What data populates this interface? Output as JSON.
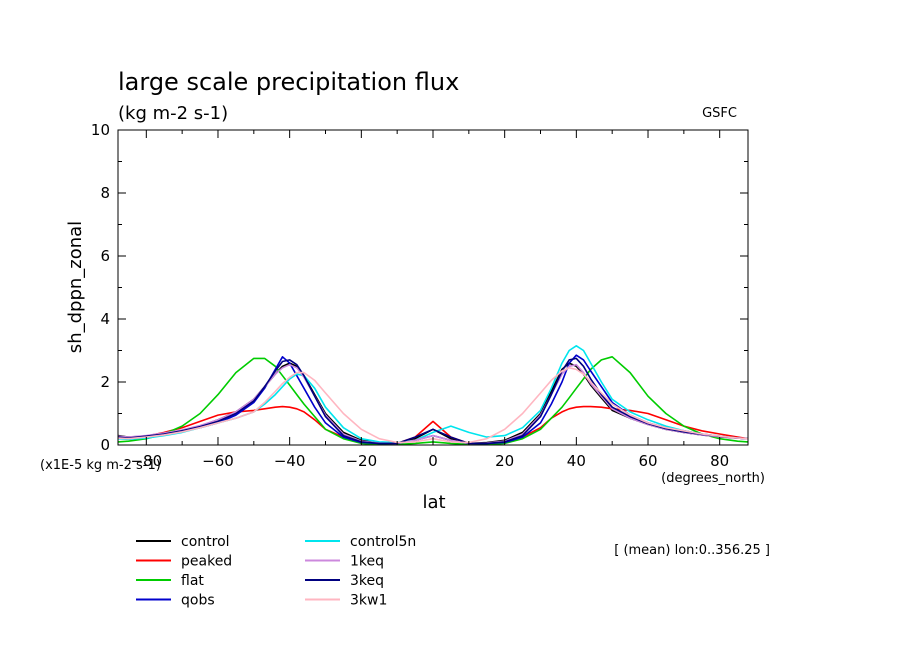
{
  "chart_data": {
    "type": "line",
    "title": "large scale precipitation flux",
    "subtitle": "(kg m-2 s-1)",
    "source_label": "GSFC",
    "ylabel": "sh_dppn_zonal",
    "xlabel": "lat",
    "y_unit_label": "(x1E-5 kg m-2 s-1)",
    "x_unit_label": "(degrees_north)",
    "averaging_note": "[ (mean) lon:0..356.25 ]",
    "xlim": [
      -87.9,
      87.9
    ],
    "ylim": [
      0,
      10
    ],
    "x_ticks": [
      -80,
      -60,
      -40,
      -20,
      0,
      20,
      40,
      60,
      80
    ],
    "y_ticks": [
      0,
      2,
      4,
      6,
      8,
      10
    ],
    "x_tick_labels": [
      "−80",
      "−60",
      "−40",
      "−20",
      "0",
      "20",
      "40",
      "60",
      "80"
    ],
    "y_tick_labels": [
      "0",
      "2",
      "4",
      "6",
      "8",
      "10"
    ],
    "grid": false,
    "legend_position": "bottom-left, two columns",
    "x": [
      -87.9,
      -85,
      -80,
      -75,
      -70,
      -65,
      -60,
      -55,
      -50,
      -47,
      -44,
      -42,
      -40,
      -38,
      -36,
      -33,
      -30,
      -25,
      -20,
      -15,
      -10,
      -5,
      0,
      5,
      10,
      15,
      20,
      25,
      30,
      33,
      36,
      38,
      40,
      42,
      44,
      47,
      50,
      55,
      60,
      65,
      70,
      75,
      80,
      85,
      87.9
    ],
    "series": [
      {
        "name": "control",
        "color": "#000000",
        "values": [
          0.3,
          0.25,
          0.28,
          0.35,
          0.45,
          0.6,
          0.8,
          1.05,
          1.45,
          1.85,
          2.25,
          2.5,
          2.6,
          2.5,
          2.2,
          1.6,
          1.0,
          0.4,
          0.15,
          0.08,
          0.05,
          0.2,
          0.5,
          0.2,
          0.05,
          0.08,
          0.15,
          0.4,
          1.0,
          1.7,
          2.4,
          2.6,
          2.5,
          2.25,
          1.9,
          1.5,
          1.1,
          0.85,
          0.65,
          0.5,
          0.4,
          0.32,
          0.26,
          0.22,
          0.2
        ]
      },
      {
        "name": "peaked",
        "color": "#ff0000",
        "values": [
          0.25,
          0.2,
          0.28,
          0.4,
          0.55,
          0.75,
          0.95,
          1.05,
          1.1,
          1.15,
          1.2,
          1.22,
          1.2,
          1.15,
          1.05,
          0.8,
          0.5,
          0.25,
          0.1,
          0.05,
          0.05,
          0.25,
          0.75,
          0.25,
          0.05,
          0.05,
          0.1,
          0.25,
          0.55,
          0.85,
          1.05,
          1.15,
          1.2,
          1.22,
          1.22,
          1.2,
          1.15,
          1.1,
          1.0,
          0.8,
          0.6,
          0.45,
          0.35,
          0.25,
          0.2
        ]
      },
      {
        "name": "flat",
        "color": "#00cc00",
        "values": [
          0.1,
          0.12,
          0.2,
          0.35,
          0.6,
          1.0,
          1.6,
          2.3,
          2.75,
          2.75,
          2.5,
          2.2,
          1.9,
          1.6,
          1.3,
          0.9,
          0.5,
          0.2,
          0.05,
          0.02,
          0.02,
          0.05,
          0.1,
          0.05,
          0.02,
          0.02,
          0.05,
          0.2,
          0.5,
          0.85,
          1.2,
          1.5,
          1.8,
          2.1,
          2.4,
          2.7,
          2.8,
          2.3,
          1.55,
          1.0,
          0.6,
          0.35,
          0.2,
          0.12,
          0.1
        ]
      },
      {
        "name": "qobs",
        "color": "#0000cc",
        "values": [
          0.2,
          0.22,
          0.28,
          0.35,
          0.45,
          0.55,
          0.7,
          0.95,
          1.35,
          1.8,
          2.4,
          2.8,
          2.6,
          2.2,
          1.8,
          1.2,
          0.7,
          0.25,
          0.08,
          0.05,
          0.05,
          0.15,
          0.3,
          0.15,
          0.05,
          0.05,
          0.08,
          0.25,
          0.7,
          1.3,
          2.0,
          2.6,
          2.85,
          2.7,
          2.35,
          1.85,
          1.35,
          0.95,
          0.7,
          0.55,
          0.45,
          0.35,
          0.28,
          0.22,
          0.2
        ]
      },
      {
        "name": "control5n",
        "color": "#00e5ee",
        "values": [
          0.2,
          0.18,
          0.22,
          0.3,
          0.4,
          0.55,
          0.7,
          0.85,
          1.05,
          1.3,
          1.6,
          1.85,
          2.1,
          2.25,
          2.2,
          1.8,
          1.2,
          0.55,
          0.2,
          0.1,
          0.08,
          0.15,
          0.4,
          0.6,
          0.4,
          0.25,
          0.3,
          0.55,
          1.1,
          1.8,
          2.6,
          3.0,
          3.15,
          3.0,
          2.6,
          2.0,
          1.45,
          1.05,
          0.8,
          0.6,
          0.45,
          0.35,
          0.28,
          0.22,
          0.2
        ]
      },
      {
        "name": "1keq",
        "color": "#cc88dd",
        "values": [
          0.28,
          0.25,
          0.3,
          0.38,
          0.48,
          0.62,
          0.8,
          1.05,
          1.45,
          1.85,
          2.25,
          2.45,
          2.55,
          2.45,
          2.15,
          1.55,
          0.95,
          0.35,
          0.12,
          0.06,
          0.05,
          0.15,
          0.3,
          0.15,
          0.05,
          0.06,
          0.12,
          0.35,
          0.95,
          1.6,
          2.25,
          2.5,
          2.55,
          2.3,
          1.95,
          1.55,
          1.15,
          0.85,
          0.65,
          0.5,
          0.4,
          0.32,
          0.26,
          0.22,
          0.2
        ]
      },
      {
        "name": "3keq",
        "color": "#000080",
        "values": [
          0.25,
          0.22,
          0.28,
          0.35,
          0.45,
          0.58,
          0.75,
          1.0,
          1.4,
          1.85,
          2.35,
          2.65,
          2.7,
          2.55,
          2.2,
          1.55,
          0.9,
          0.3,
          0.1,
          0.05,
          0.05,
          0.25,
          0.5,
          0.25,
          0.05,
          0.05,
          0.1,
          0.3,
          0.9,
          1.6,
          2.35,
          2.7,
          2.75,
          2.5,
          2.1,
          1.6,
          1.2,
          0.9,
          0.68,
          0.52,
          0.42,
          0.34,
          0.27,
          0.22,
          0.2
        ]
      },
      {
        "name": "3kw1",
        "color": "#ffb6c1",
        "values": [
          0.22,
          0.2,
          0.25,
          0.32,
          0.42,
          0.55,
          0.7,
          0.85,
          1.05,
          1.35,
          1.7,
          1.95,
          2.15,
          2.3,
          2.3,
          2.05,
          1.65,
          1.0,
          0.5,
          0.2,
          0.08,
          0.1,
          0.2,
          0.1,
          0.08,
          0.2,
          0.5,
          1.0,
          1.65,
          2.05,
          2.35,
          2.45,
          2.4,
          2.25,
          2.0,
          1.65,
          1.3,
          0.95,
          0.7,
          0.55,
          0.45,
          0.35,
          0.28,
          0.22,
          0.2
        ]
      }
    ]
  }
}
